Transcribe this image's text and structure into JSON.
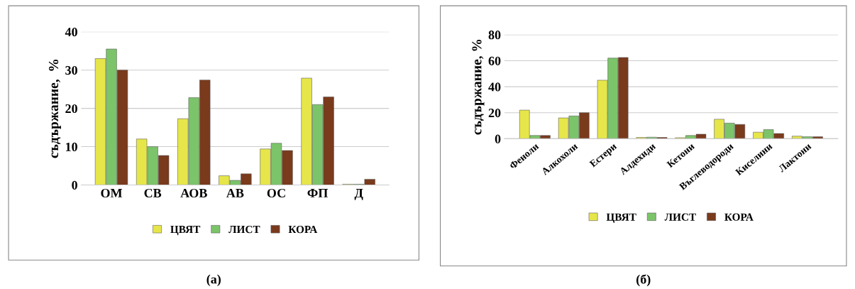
{
  "chart_data": [
    {
      "type": "bar",
      "ylabel": "съдържание,  %",
      "categories": [
        "ОМ",
        "СВ",
        "АОВ",
        "АВ",
        "ОС",
        "ФП",
        "Д"
      ],
      "series": [
        {
          "name": "ЦВЯТ",
          "color": "#e6e64a",
          "values": [
            33,
            12,
            17.3,
            2.4,
            9.4,
            27.9,
            0.2
          ]
        },
        {
          "name": "ЛИСТ",
          "color": "#7cc46a",
          "values": [
            35.5,
            10,
            22.8,
            1.2,
            10.9,
            21,
            0.2
          ]
        },
        {
          "name": "КОРА",
          "color": "#7a3a1c",
          "values": [
            30,
            7.7,
            27.4,
            2.9,
            9,
            23,
            1.5
          ]
        }
      ],
      "ylim": [
        0,
        40
      ],
      "yticks": [
        0,
        10,
        20,
        30,
        40
      ],
      "grid": "y",
      "legend": "bottom",
      "annotations": [
        "(а)"
      ]
    },
    {
      "type": "bar",
      "ylabel": "съдържание, %",
      "categories": [
        "Феноли",
        "Алкохоли",
        "Естери",
        "Алдехиди",
        "Кетони",
        "Въглеводороди",
        "Киселини",
        "Лактони"
      ],
      "series": [
        {
          "name": "ЦВЯТ",
          "color": "#e6e64a",
          "values": [
            22,
            16,
            45,
            1,
            0.8,
            15,
            5,
            2
          ]
        },
        {
          "name": "ЛИСТ",
          "color": "#7cc46a",
          "values": [
            2.5,
            17.5,
            62,
            1.2,
            2.5,
            12,
            7,
            1.5
          ]
        },
        {
          "name": "КОРА",
          "color": "#7a3a1c",
          "values": [
            2.5,
            20,
            62.5,
            1,
            3.5,
            11,
            4,
            1.5
          ]
        }
      ],
      "ylim": [
        0,
        80
      ],
      "yticks": [
        0,
        20,
        40,
        60,
        80
      ],
      "grid": "y",
      "legend": "bottom",
      "annotations": [
        "(б)"
      ]
    }
  ]
}
